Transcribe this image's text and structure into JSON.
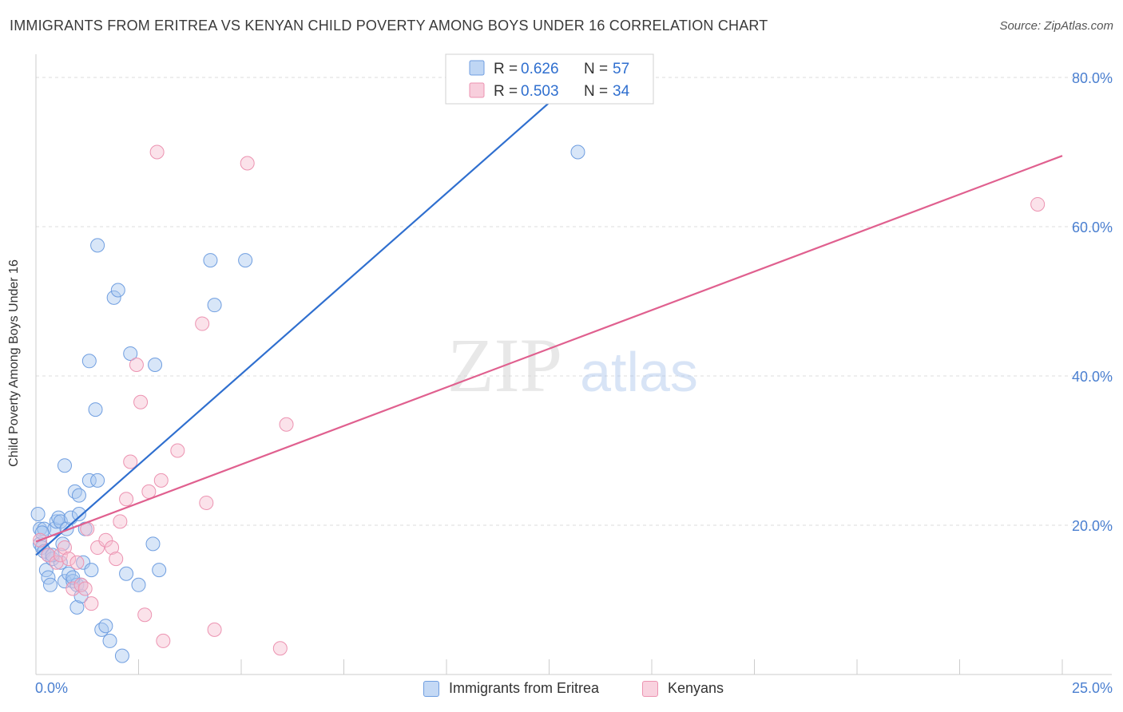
{
  "header": {
    "title": "IMMIGRANTS FROM ERITREA VS KENYAN CHILD POVERTY AMONG BOYS UNDER 16 CORRELATION CHART",
    "source": "Source: ZipAtlas.com"
  },
  "watermark": {
    "zip": "ZIP",
    "atlas": "atlas"
  },
  "colors": {
    "eritrea_fill": "#a9c8f0",
    "eritrea_stroke": "#6f9ee0",
    "eritrea_line": "#2f6fcf",
    "kenyan_fill": "#f6bed0",
    "kenyan_stroke": "#ec93b1",
    "kenyan_line": "#e0608f",
    "axis_text": "#4a7fd0",
    "grid": "#dddddd"
  },
  "legend": {
    "rows": [
      {
        "r_label": "R = ",
        "r_value": "0.626",
        "n_label": "N = ",
        "n_value": "57"
      },
      {
        "r_label": "R = ",
        "r_value": "0.503",
        "n_label": "N = ",
        "n_value": "34"
      }
    ]
  },
  "chart_data": {
    "type": "scatter",
    "title": "IMMIGRANTS FROM ERITREA VS KENYAN CHILD POVERTY AMONG BOYS UNDER 16 CORRELATION CHART",
    "xlabel": "",
    "ylabel": "Child Poverty Among Boys Under 16",
    "xlim": [
      0,
      25
    ],
    "ylim": [
      0,
      80
    ],
    "x_tick_labels": [
      "0.0%",
      "25.0%"
    ],
    "y_ticks": [
      20,
      40,
      60,
      80
    ],
    "y_tick_labels": [
      "20.0%",
      "40.0%",
      "60.0%",
      "80.0%"
    ],
    "grid": true,
    "legend_position": "top-center and bottom",
    "series": [
      {
        "name": "Immigrants from Eritrea",
        "R": 0.626,
        "N": 57,
        "trend": {
          "x0": 0.0,
          "y0": 16.0,
          "x1": 13.2,
          "y1": 80.0
        },
        "points": [
          [
            0.05,
            21.5
          ],
          [
            0.1,
            19.5
          ],
          [
            0.1,
            17.5
          ],
          [
            0.15,
            17.0
          ],
          [
            0.2,
            19.5
          ],
          [
            0.2,
            16.5
          ],
          [
            0.25,
            14.0
          ],
          [
            0.3,
            16.0
          ],
          [
            0.3,
            13.0
          ],
          [
            0.35,
            12.0
          ],
          [
            0.4,
            15.5
          ],
          [
            0.45,
            19.5
          ],
          [
            0.5,
            20.5
          ],
          [
            0.55,
            21.0
          ],
          [
            0.6,
            15.0
          ],
          [
            0.6,
            20.5
          ],
          [
            0.65,
            17.5
          ],
          [
            0.7,
            28.0
          ],
          [
            0.7,
            12.5
          ],
          [
            0.75,
            19.5
          ],
          [
            0.8,
            13.5
          ],
          [
            0.85,
            21.0
          ],
          [
            0.9,
            12.5
          ],
          [
            0.95,
            24.5
          ],
          [
            1.0,
            12.0
          ],
          [
            1.0,
            9.0
          ],
          [
            1.05,
            21.5
          ],
          [
            1.05,
            24.0
          ],
          [
            1.1,
            10.5
          ],
          [
            1.1,
            12.0
          ],
          [
            1.15,
            15.0
          ],
          [
            1.2,
            19.5
          ],
          [
            1.3,
            26.0
          ],
          [
            1.3,
            42.0
          ],
          [
            1.35,
            14.0
          ],
          [
            1.45,
            35.5
          ],
          [
            1.5,
            26.0
          ],
          [
            1.5,
            57.5
          ],
          [
            1.6,
            6.0
          ],
          [
            1.7,
            6.5
          ],
          [
            1.8,
            4.5
          ],
          [
            1.9,
            50.5
          ],
          [
            2.0,
            51.5
          ],
          [
            2.1,
            2.5
          ],
          [
            2.2,
            13.5
          ],
          [
            2.3,
            43.0
          ],
          [
            2.5,
            12.0
          ],
          [
            2.85,
            17.5
          ],
          [
            2.9,
            41.5
          ],
          [
            3.0,
            14.0
          ],
          [
            4.25,
            55.5
          ],
          [
            4.35,
            49.5
          ],
          [
            5.1,
            55.5
          ],
          [
            13.2,
            70.0
          ],
          [
            0.15,
            19.0
          ],
          [
            0.4,
            16.0
          ],
          [
            0.9,
            13.0
          ]
        ]
      },
      {
        "name": "Kenyans",
        "R": 0.503,
        "N": 34,
        "trend": {
          "x0": 0.0,
          "y0": 17.8,
          "x1": 25.0,
          "y1": 69.5
        },
        "points": [
          [
            0.1,
            18.0
          ],
          [
            0.3,
            16.0
          ],
          [
            0.5,
            15.0
          ],
          [
            0.6,
            16.0
          ],
          [
            0.7,
            17.0
          ],
          [
            0.8,
            15.5
          ],
          [
            0.9,
            11.5
          ],
          [
            1.0,
            15.0
          ],
          [
            1.1,
            12.0
          ],
          [
            1.2,
            11.5
          ],
          [
            1.25,
            19.5
          ],
          [
            1.35,
            9.5
          ],
          [
            1.5,
            17.0
          ],
          [
            1.7,
            18.0
          ],
          [
            1.85,
            17.0
          ],
          [
            1.95,
            15.5
          ],
          [
            2.05,
            20.5
          ],
          [
            2.2,
            23.5
          ],
          [
            2.3,
            28.5
          ],
          [
            2.45,
            41.5
          ],
          [
            2.55,
            36.5
          ],
          [
            2.65,
            8.0
          ],
          [
            2.75,
            24.5
          ],
          [
            2.95,
            70.0
          ],
          [
            3.05,
            26.0
          ],
          [
            3.1,
            4.5
          ],
          [
            3.45,
            30.0
          ],
          [
            4.05,
            47.0
          ],
          [
            4.15,
            23.0
          ],
          [
            4.35,
            6.0
          ],
          [
            5.15,
            68.5
          ],
          [
            5.95,
            3.5
          ],
          [
            6.1,
            33.5
          ],
          [
            24.4,
            63.0
          ]
        ]
      }
    ]
  }
}
